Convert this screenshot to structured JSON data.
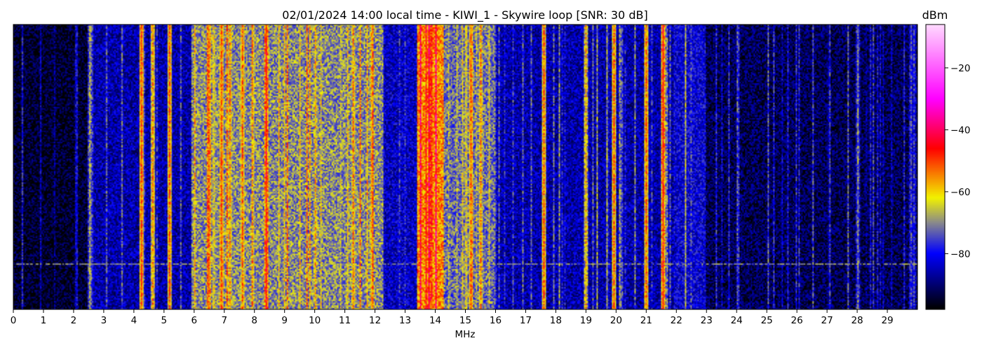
{
  "chart_data": {
    "type": "heatmap",
    "title": "02/01/2024 14:00 local time - KIWI_1 - Skywire loop [SNR: 30 dB]",
    "xlabel": "MHz",
    "ylabel": "",
    "xlim": [
      0,
      30
    ],
    "x_ticks": [
      0,
      1,
      2,
      3,
      4,
      5,
      6,
      7,
      8,
      9,
      10,
      11,
      12,
      13,
      14,
      15,
      16,
      17,
      18,
      19,
      20,
      21,
      22,
      23,
      24,
      25,
      26,
      27,
      28,
      29
    ],
    "y_axis_visible": false,
    "colorbar": {
      "label": "dBm",
      "range": [
        -98,
        -6
      ],
      "ticks": [
        -20,
        -40,
        -60,
        -80
      ],
      "tick_labels": [
        "−20",
        "−40",
        "−60",
        "−80"
      ],
      "colormap": [
        {
          "value": -98,
          "color": "#000000"
        },
        {
          "value": -88,
          "color": "#00008f"
        },
        {
          "value": -80,
          "color": "#0000ff"
        },
        {
          "value": -70,
          "color": "#8a8a8a"
        },
        {
          "value": -62,
          "color": "#f2f200"
        },
        {
          "value": -46,
          "color": "#ff0000"
        },
        {
          "value": -30,
          "color": "#ff00ff"
        },
        {
          "value": -6,
          "color": "#ffd9ff"
        }
      ]
    },
    "spectrum_profile": [
      {
        "from_mhz": 0,
        "to_mhz": 2.5,
        "level_dbm": -95
      },
      {
        "from_mhz": 2.5,
        "to_mhz": 5.9,
        "level_dbm": -86
      },
      {
        "from_mhz": 5.9,
        "to_mhz": 12.3,
        "level_dbm": -70
      },
      {
        "from_mhz": 12.3,
        "to_mhz": 13.4,
        "level_dbm": -84
      },
      {
        "from_mhz": 13.4,
        "to_mhz": 14.3,
        "level_dbm": -55
      },
      {
        "from_mhz": 14.3,
        "to_mhz": 16.0,
        "level_dbm": -72
      },
      {
        "from_mhz": 16.0,
        "to_mhz": 21.9,
        "level_dbm": -86
      },
      {
        "from_mhz": 21.9,
        "to_mhz": 23.0,
        "level_dbm": -82
      },
      {
        "from_mhz": 23.0,
        "to_mhz": 30.0,
        "level_dbm": -92
      }
    ],
    "strong_signals_mhz": [
      {
        "mhz": 2.55,
        "level_dbm": -68
      },
      {
        "mhz": 4.27,
        "level_dbm": -50
      },
      {
        "mhz": 4.62,
        "level_dbm": -55
      },
      {
        "mhz": 5.2,
        "level_dbm": -52
      },
      {
        "mhz": 6.5,
        "level_dbm": -52
      },
      {
        "mhz": 6.9,
        "level_dbm": -50
      },
      {
        "mhz": 7.2,
        "level_dbm": -55
      },
      {
        "mhz": 7.6,
        "level_dbm": -52
      },
      {
        "mhz": 8.4,
        "level_dbm": -45
      },
      {
        "mhz": 9.5,
        "level_dbm": -60
      },
      {
        "mhz": 10.0,
        "level_dbm": -58
      },
      {
        "mhz": 11.3,
        "level_dbm": -55
      },
      {
        "mhz": 11.9,
        "level_dbm": -58
      },
      {
        "mhz": 13.7,
        "level_dbm": -46
      },
      {
        "mhz": 13.9,
        "level_dbm": -48
      },
      {
        "mhz": 15.2,
        "level_dbm": -52
      },
      {
        "mhz": 15.5,
        "level_dbm": -55
      },
      {
        "mhz": 17.6,
        "level_dbm": -52
      },
      {
        "mhz": 19.0,
        "level_dbm": -58
      },
      {
        "mhz": 19.95,
        "level_dbm": -52
      },
      {
        "mhz": 21.0,
        "level_dbm": -52
      },
      {
        "mhz": 21.55,
        "level_dbm": -47
      },
      {
        "mhz": 28.0,
        "level_dbm": -70
      }
    ],
    "horizontal_line": {
      "row_fraction": 0.84,
      "level_dbm": -70
    }
  }
}
